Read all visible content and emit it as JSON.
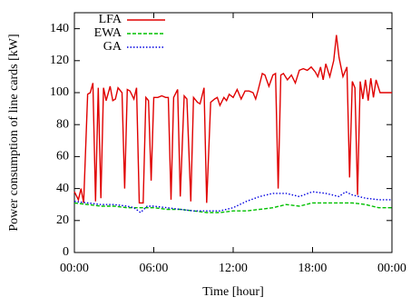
{
  "chart_data": {
    "type": "line",
    "xlabel": "Time [hour]",
    "ylabel": "Power consumption of line cards [kW]",
    "xlim": [
      0,
      24
    ],
    "xticks": [
      {
        "value": 0,
        "label": "00:00"
      },
      {
        "value": 6,
        "label": "06:00"
      },
      {
        "value": 12,
        "label": "12:00"
      },
      {
        "value": 18,
        "label": "18:00"
      },
      {
        "value": 24,
        "label": "00:00"
      }
    ],
    "ylim": [
      0,
      150
    ],
    "yticks": [
      0,
      20,
      40,
      60,
      80,
      100,
      120,
      140
    ],
    "legend": "upper left",
    "series": [
      {
        "name": "LFA",
        "color": "#e00000",
        "dash": "solid",
        "x": [
          0,
          0.3,
          0.5,
          0.7,
          1.0,
          1.2,
          1.4,
          1.6,
          1.8,
          2.0,
          2.2,
          2.4,
          2.7,
          2.9,
          3.1,
          3.3,
          3.6,
          3.8,
          4.0,
          4.2,
          4.5,
          4.7,
          4.9,
          5.2,
          5.4,
          5.6,
          5.8,
          6.0,
          6.3,
          6.6,
          6.9,
          7.1,
          7.3,
          7.5,
          7.8,
          8.0,
          8.3,
          8.5,
          8.8,
          9.0,
          9.3,
          9.5,
          9.8,
          10.0,
          10.3,
          10.6,
          10.8,
          11.0,
          11.3,
          11.5,
          11.7,
          12.0,
          12.3,
          12.6,
          12.9,
          13.2,
          13.5,
          13.7,
          13.9,
          14.2,
          14.4,
          14.7,
          15.0,
          15.2,
          15.4,
          15.6,
          15.8,
          16.1,
          16.4,
          16.7,
          17.0,
          17.3,
          17.6,
          17.9,
          18.2,
          18.4,
          18.6,
          18.8,
          19.0,
          19.3,
          19.6,
          19.8,
          20.0,
          20.3,
          20.6,
          20.8,
          21.0,
          21.2,
          21.4,
          21.6,
          21.8,
          22.0,
          22.2,
          22.4,
          22.6,
          22.8,
          23.1,
          23.4,
          24.0
        ],
        "values": [
          38,
          33,
          40,
          31,
          99,
          100,
          106,
          32,
          103,
          34,
          103,
          95,
          104,
          95,
          96,
          103,
          100,
          40,
          102,
          101,
          96,
          103,
          31,
          31,
          97,
          95,
          45,
          97,
          97,
          98,
          97,
          97,
          33,
          97,
          102,
          35,
          98,
          96,
          32,
          97,
          94,
          93,
          103,
          31,
          94,
          96,
          97,
          92,
          97,
          95,
          99,
          97,
          102,
          96,
          101,
          101,
          100,
          96,
          102,
          112,
          111,
          104,
          111,
          112,
          40,
          111,
          112,
          108,
          111,
          106,
          114,
          115,
          114,
          116,
          113,
          110,
          116,
          108,
          118,
          110,
          120,
          136,
          122,
          110,
          116,
          47,
          107,
          103,
          36,
          107,
          96,
          108,
          95,
          109,
          97,
          108,
          100,
          100,
          100
        ]
      },
      {
        "name": "EWA",
        "color": "#00c000",
        "dash": "dashed",
        "x": [
          0,
          1,
          2,
          3,
          4,
          5,
          6,
          7,
          8,
          9,
          10,
          11,
          12,
          13,
          14,
          15,
          16,
          17,
          18,
          19,
          20,
          21,
          22,
          23,
          24
        ],
        "values": [
          31,
          30,
          29,
          29,
          28,
          28,
          28,
          27,
          27,
          26,
          25,
          25,
          26,
          26,
          27,
          28,
          30,
          29,
          31,
          31,
          31,
          31,
          30,
          28,
          28
        ]
      },
      {
        "name": "GA",
        "color": "#0000e0",
        "dash": "dotted",
        "x": [
          0,
          1,
          2,
          3,
          4,
          4.5,
          5,
          5.5,
          6,
          7,
          8,
          9,
          10,
          11,
          12,
          13,
          14,
          15,
          16,
          17,
          18,
          19,
          20,
          20.5,
          21,
          22,
          23,
          24
        ],
        "values": [
          32,
          31,
          30,
          30,
          29,
          28,
          25,
          29,
          29,
          28,
          27,
          26,
          26,
          26,
          28,
          32,
          35,
          37,
          37,
          35,
          38,
          37,
          35,
          38,
          36,
          34,
          33,
          33
        ]
      }
    ]
  }
}
